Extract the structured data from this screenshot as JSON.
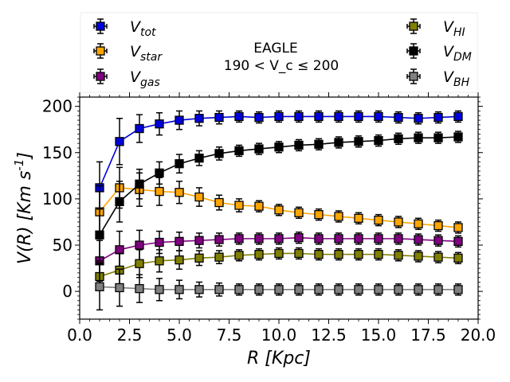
{
  "chart_data": {
    "type": "line",
    "title": "EAGLE",
    "subtitle": "190 < V_c ≤ 200",
    "xlabel": "R [Kpc]",
    "ylabel": "V(R) [Km s^-1]",
    "xlim": [
      0.0,
      20.0
    ],
    "ylim": [
      -30,
      210
    ],
    "xticks": [
      0.0,
      2.5,
      5.0,
      7.5,
      10.0,
      12.5,
      15.0,
      17.5,
      20.0
    ],
    "xtick_labels": [
      "0.0",
      "2.5",
      "5.0",
      "7.5",
      "10.0",
      "12.5",
      "15.0",
      "17.5",
      "20.0"
    ],
    "yticks": [
      0,
      50,
      100,
      150,
      200
    ],
    "ytick_labels": [
      "0",
      "50",
      "100",
      "150",
      "200"
    ],
    "legend_position": "top (outside plot)",
    "x": [
      1,
      2,
      3,
      4,
      5,
      6,
      7,
      8,
      9,
      10,
      11,
      12,
      13,
      14,
      15,
      16,
      17,
      18,
      19
    ],
    "series": [
      {
        "name": "V_tot",
        "base": "V",
        "sub": "tot",
        "color": "#0000dd",
        "values": [
          112,
          162,
          176,
          181,
          185,
          187,
          188,
          189,
          188,
          189,
          189,
          189,
          189,
          189,
          189,
          188,
          187,
          188,
          189
        ],
        "errors": [
          28,
          25,
          15,
          12,
          10,
          8,
          7,
          6,
          6,
          6,
          6,
          6,
          6,
          6,
          6,
          6,
          6,
          6,
          6
        ]
      },
      {
        "name": "V_star",
        "base": "V",
        "sub": "star",
        "color": "#ffa500",
        "values": [
          86,
          112,
          110,
          108,
          107,
          102,
          96,
          93,
          92,
          88,
          85,
          83,
          81,
          79,
          77,
          75,
          73,
          71,
          69
        ],
        "errors": [
          28,
          22,
          18,
          15,
          12,
          10,
          8,
          7,
          6,
          6,
          6,
          6,
          6,
          6,
          6,
          6,
          6,
          6,
          6
        ]
      },
      {
        "name": "V_gas",
        "base": "V",
        "sub": "gas",
        "color": "#800080",
        "values": [
          33,
          45,
          50,
          53,
          54,
          55,
          56,
          57,
          57,
          57,
          58,
          57,
          57,
          57,
          57,
          57,
          56,
          55,
          54
        ],
        "errors": [
          22,
          20,
          16,
          12,
          10,
          8,
          7,
          6,
          6,
          6,
          6,
          6,
          6,
          6,
          6,
          6,
          6,
          6,
          6
        ]
      },
      {
        "name": "V_HI",
        "base": "V",
        "sub": "HI",
        "color": "#808000",
        "values": [
          16,
          23,
          30,
          33,
          34,
          36,
          37,
          39,
          40,
          41,
          41,
          40,
          40,
          40,
          40,
          39,
          38,
          37,
          36
        ],
        "errors": [
          15,
          18,
          15,
          12,
          10,
          8,
          7,
          6,
          6,
          6,
          6,
          6,
          6,
          6,
          6,
          6,
          6,
          6,
          6
        ]
      },
      {
        "name": "V_DM",
        "base": "V",
        "sub": "DM",
        "color": "#000000",
        "values": [
          61,
          97,
          116,
          128,
          138,
          144,
          149,
          152,
          154,
          156,
          158,
          159,
          161,
          162,
          163,
          165,
          166,
          166,
          167
        ],
        "errors": [
          28,
          22,
          16,
          12,
          10,
          8,
          7,
          6,
          6,
          6,
          6,
          6,
          6,
          6,
          6,
          6,
          6,
          6,
          6
        ]
      },
      {
        "name": "V_BH",
        "base": "V",
        "sub": "BH",
        "color": "#808080",
        "values": [
          5,
          4,
          3,
          2,
          2,
          2,
          2,
          2,
          2,
          2,
          2,
          2,
          2,
          2,
          2,
          2,
          2,
          2,
          2
        ],
        "errors": [
          25,
          20,
          15,
          12,
          10,
          8,
          7,
          6,
          6,
          6,
          6,
          6,
          6,
          6,
          6,
          6,
          6,
          6,
          6
        ]
      }
    ],
    "legend": {
      "left": [
        "V_tot",
        "V_star",
        "V_gas"
      ],
      "right": [
        "V_HI",
        "V_DM",
        "V_BH"
      ]
    }
  }
}
